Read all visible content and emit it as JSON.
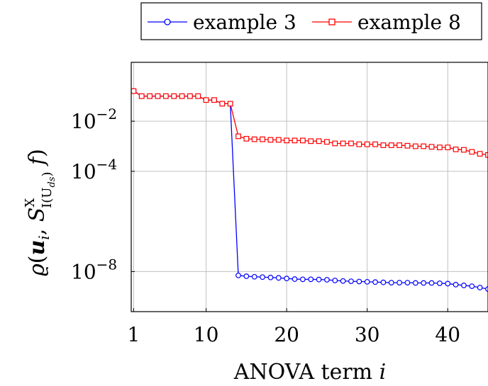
{
  "chart_data": {
    "type": "line",
    "title": "",
    "xlabel_text": "ANOVA term",
    "xlabel_var": "i",
    "ylabel": "ϱ(u_i, S^X_{I(U_{d_s})} f)",
    "x_ticks": [
      1,
      10,
      20,
      30,
      40
    ],
    "y_ticks": [
      {
        "value": 0.01,
        "base": "10",
        "exp": "−2"
      },
      {
        "value": 0.0001,
        "base": "10",
        "exp": "−4"
      },
      {
        "value": 1e-08,
        "base": "10",
        "exp": "−8"
      }
    ],
    "xlim": [
      0.7,
      45
    ],
    "y_log_lim": [
      -9.6,
      0.35
    ],
    "y_scale": "log",
    "grid": true,
    "legend_position": "top",
    "series": [
      {
        "name": "example 3",
        "color": "#0000ff",
        "marker": "circle",
        "x": [
          1,
          2,
          3,
          4,
          5,
          6,
          7,
          8,
          9,
          10,
          11,
          12,
          13,
          14,
          15,
          16,
          17,
          18,
          19,
          20,
          21,
          22,
          23,
          24,
          25,
          26,
          27,
          28,
          29,
          30,
          31,
          32,
          33,
          34,
          35,
          36,
          37,
          38,
          39,
          40,
          41,
          42,
          43,
          44,
          45
        ],
        "y": [
          0.16,
          0.1,
          0.1,
          0.1,
          0.1,
          0.1,
          0.1,
          0.1,
          0.1,
          0.07,
          0.07,
          0.05,
          0.05,
          7e-09,
          6.5e-09,
          6.2e-09,
          6e-09,
          5.8e-09,
          5.6e-09,
          5.3e-09,
          5e-09,
          4.9e-09,
          4.9e-09,
          4.8e-09,
          4.7e-09,
          4.4e-09,
          4.2e-09,
          4.1e-09,
          4e-09,
          3.9e-09,
          3.8e-09,
          3.7e-09,
          3.6e-09,
          3.6e-09,
          3.6e-09,
          3.5e-09,
          3.5e-09,
          3.5e-09,
          3.4e-09,
          3.3e-09,
          3e-09,
          2.8e-09,
          2.6e-09,
          2.3e-09,
          2e-09
        ]
      },
      {
        "name": "example 8",
        "color": "#ff0000",
        "marker": "square",
        "x": [
          1,
          2,
          3,
          4,
          5,
          6,
          7,
          8,
          9,
          10,
          11,
          12,
          13,
          14,
          15,
          16,
          17,
          18,
          19,
          20,
          21,
          22,
          23,
          24,
          25,
          26,
          27,
          28,
          29,
          30,
          31,
          32,
          33,
          34,
          35,
          36,
          37,
          38,
          39,
          40,
          41,
          42,
          43,
          44,
          45
        ],
        "y": [
          0.16,
          0.1,
          0.1,
          0.1,
          0.1,
          0.1,
          0.1,
          0.1,
          0.1,
          0.07,
          0.07,
          0.05,
          0.05,
          0.0025,
          0.002,
          0.0019,
          0.0019,
          0.0018,
          0.0018,
          0.0017,
          0.0017,
          0.0017,
          0.0016,
          0.0016,
          0.0015,
          0.0013,
          0.0013,
          0.0013,
          0.0012,
          0.0012,
          0.0012,
          0.0011,
          0.0011,
          0.0011,
          0.00105,
          0.001,
          0.001,
          0.00095,
          0.0009,
          0.0009,
          0.00075,
          0.00072,
          0.0006,
          0.0005,
          0.00045
        ]
      }
    ]
  }
}
